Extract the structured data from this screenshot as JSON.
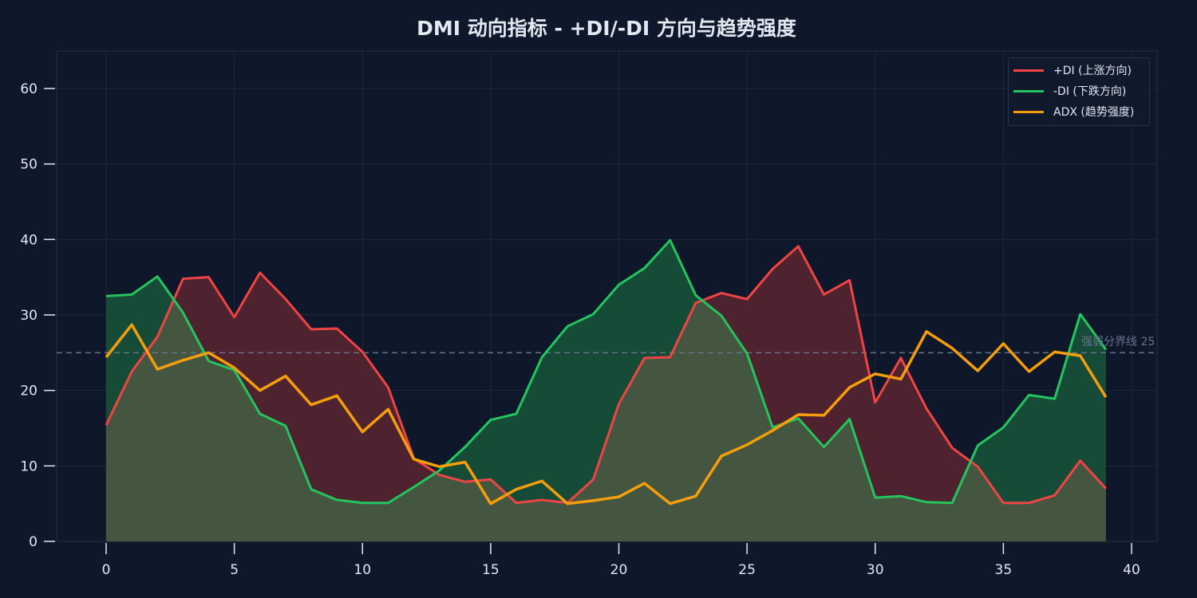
{
  "title": "DMI 动向指标 - +DI/-DI 方向与趋势强度",
  "legend": {
    "items": [
      {
        "label": "+DI (上涨方向)",
        "color": "#ef4444"
      },
      {
        "label": "-DI (下跌方向)",
        "color": "#22c55e"
      },
      {
        "label": "ADX (趋势强度)",
        "color": "#f59e0b"
      }
    ]
  },
  "threshold": {
    "label": "强弱分界线 25",
    "value": 25,
    "color": "#64748b"
  },
  "colors": {
    "background": "#0f172a",
    "plus_di": "#ef4444",
    "minus_di": "#22c55e",
    "adx": "#f59e0b",
    "plus_fill": "#4f2230",
    "minus_fill": "#164b38",
    "overlap_fill": "#445640"
  },
  "chart_data": {
    "type": "line",
    "title": "DMI 动向指标 - +DI/-DI 方向与趋势强度",
    "xlabel": "",
    "ylabel": "",
    "xlim": [
      -2,
      41
    ],
    "ylim": [
      0,
      65
    ],
    "xticks": [
      0,
      5,
      10,
      15,
      20,
      25,
      30,
      35,
      40
    ],
    "yticks": [
      0,
      10,
      20,
      30,
      40,
      50,
      60
    ],
    "grid": true,
    "legend_position": "upper right",
    "x": [
      0,
      1,
      2,
      3,
      4,
      5,
      6,
      7,
      8,
      9,
      10,
      11,
      12,
      13,
      14,
      15,
      16,
      17,
      18,
      19,
      20,
      21,
      22,
      23,
      24,
      25,
      26,
      27,
      28,
      29,
      30,
      31,
      32,
      33,
      34,
      35,
      36,
      37,
      38,
      39
    ],
    "series": [
      {
        "name": "+DI (上涨方向)",
        "values": [
          15.4,
          22.5,
          27.1,
          34.8,
          35.0,
          29.7,
          35.6,
          32.1,
          28.1,
          28.2,
          25.1,
          20.4,
          11.0,
          8.8,
          7.9,
          8.2,
          5.1,
          5.5,
          5.1,
          8.2,
          18.2,
          24.3,
          24.4,
          31.6,
          32.9,
          32.1,
          36.1,
          39.1,
          32.7,
          34.6,
          18.4,
          24.3,
          17.6,
          12.4,
          9.9,
          5.1,
          5.1,
          6.1,
          10.7,
          7.0
        ]
      },
      {
        "name": "-DI (下跌方向)",
        "values": [
          32.5,
          32.7,
          35.1,
          30.3,
          23.9,
          22.7,
          16.9,
          15.3,
          6.9,
          5.5,
          5.1,
          5.1,
          7.2,
          9.4,
          12.5,
          16.1,
          16.9,
          24.4,
          28.5,
          30.1,
          34.0,
          36.2,
          39.9,
          32.6,
          29.9,
          24.9,
          15.1,
          16.3,
          12.5,
          16.2,
          5.8,
          6.0,
          5.2,
          5.1,
          12.7,
          15.1,
          19.4,
          18.9,
          30.1,
          25.4
        ]
      },
      {
        "name": "ADX (趋势强度)",
        "values": [
          24.4,
          28.7,
          22.8,
          24.0,
          25.0,
          23.0,
          20.0,
          21.9,
          18.1,
          19.3,
          14.5,
          17.5,
          10.9,
          9.9,
          10.5,
          5.0,
          6.9,
          8.0,
          5.0,
          5.4,
          5.9,
          7.7,
          5.0,
          6.0,
          11.3,
          12.8,
          14.7,
          16.8,
          16.7,
          20.4,
          22.2,
          21.5,
          27.8,
          25.6,
          22.6,
          26.2,
          22.5,
          25.1,
          24.6,
          19.1
        ]
      }
    ],
    "annotations": [
      {
        "type": "hline",
        "y": 25,
        "text": "强弱分界线 25",
        "style": "dashed"
      }
    ]
  }
}
